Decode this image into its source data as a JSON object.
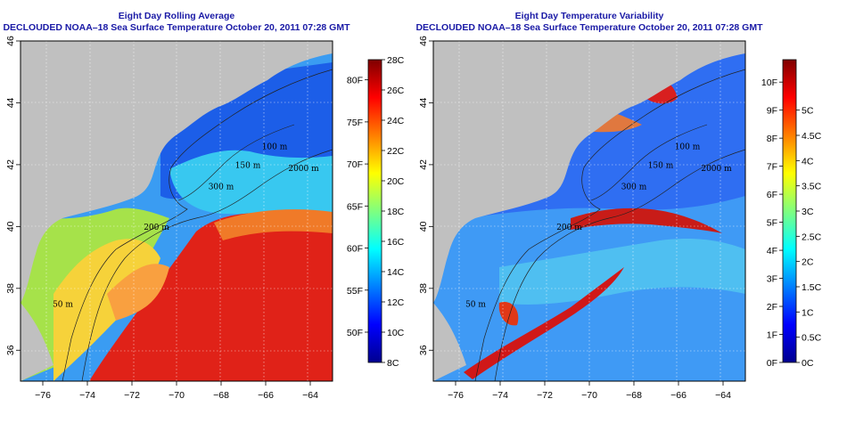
{
  "chart_data": [
    {
      "type": "heatmap",
      "title": "Eight Day Rolling Average",
      "subtitle": "DECLOUDED NOAA–18 Sea Surface Temperature October 20, 2011 07:28 GMT",
      "xlabel": "",
      "ylabel": "",
      "xlim": [
        -77,
        -63
      ],
      "ylim": [
        35,
        46
      ],
      "x_ticks": [
        -76,
        -74,
        -72,
        -70,
        -68,
        -66,
        -64
      ],
      "x_tick_labels": [
        "−76",
        "−74",
        "−72",
        "−70",
        "−68",
        "−66",
        "−64"
      ],
      "y_ticks": [
        36,
        38,
        40,
        42,
        44,
        46
      ],
      "grid": true,
      "colorbar": {
        "range_c": [
          8,
          28
        ],
        "c_ticks": [
          8,
          10,
          12,
          14,
          16,
          18,
          20,
          22,
          24,
          26,
          28
        ],
        "c_labels": [
          "8C",
          "10C",
          "12C",
          "14C",
          "16C",
          "18C",
          "20C",
          "22C",
          "24C",
          "26C",
          "28C"
        ],
        "f_ticks": [
          50,
          55,
          60,
          65,
          70,
          75,
          80
        ],
        "f_labels": [
          "50F",
          "55F",
          "60F",
          "65F",
          "70F",
          "75F",
          "80F"
        ],
        "colors": [
          "#00008f",
          "#0000ff",
          "#007fff",
          "#00ffff",
          "#7fff7f",
          "#ffff00",
          "#ff7f00",
          "#ff0000",
          "#7f0000"
        ]
      },
      "contour_labels": [
        {
          "text": "100 m",
          "lon": -65.6,
          "lat": 42.5
        },
        {
          "text": "2000 m",
          "lon": -64.3,
          "lat": 41.8
        },
        {
          "text": "150 m",
          "lon": -66.8,
          "lat": 41.9
        },
        {
          "text": "300 m",
          "lon": -68.0,
          "lat": 41.2
        },
        {
          "text": "200 m",
          "lon": -70.9,
          "lat": 39.9
        },
        {
          "text": "50 m",
          "lon": -75.1,
          "lat": 37.4
        }
      ]
    },
    {
      "type": "heatmap",
      "title": "Eight Day Temperature Variability",
      "subtitle": "DECLOUDED NOAA–18 Sea Surface Temperature October 20, 2011 07:28 GMT",
      "xlabel": "",
      "ylabel": "",
      "xlim": [
        -77,
        -63
      ],
      "ylim": [
        35,
        46
      ],
      "x_ticks": [
        -76,
        -74,
        -72,
        -70,
        -68,
        -66,
        -64
      ],
      "x_tick_labels": [
        "−76",
        "−74",
        "−72",
        "−70",
        "−68",
        "−66",
        "−64"
      ],
      "y_ticks": [
        36,
        38,
        40,
        42,
        44,
        46
      ],
      "grid": true,
      "colorbar": {
        "range_c": [
          0,
          6
        ],
        "c_ticks": [
          0,
          0.5,
          1,
          1.5,
          2,
          2.5,
          3,
          3.5,
          4,
          4.5,
          5
        ],
        "c_labels": [
          "0C",
          "0.5C",
          "1C",
          "1.5C",
          "2C",
          "2.5C",
          "3C",
          "3.5C",
          "4C",
          "4.5C",
          "5C"
        ],
        "f_ticks": [
          0,
          1,
          2,
          3,
          4,
          5,
          6,
          7,
          8,
          9,
          10
        ],
        "f_labels": [
          "0F",
          "1F",
          "2F",
          "3F",
          "4F",
          "5F",
          "6F",
          "7F",
          "8F",
          "9F",
          "10F"
        ],
        "colors": [
          "#00008f",
          "#0000ff",
          "#007fff",
          "#00ffff",
          "#7fff7f",
          "#ffff00",
          "#ff7f00",
          "#ff0000",
          "#7f0000"
        ]
      },
      "contour_labels": [
        {
          "text": "100 m",
          "lon": -65.6,
          "lat": 42.5
        },
        {
          "text": "2000 m",
          "lon": -64.3,
          "lat": 41.8
        },
        {
          "text": "150 m",
          "lon": -66.8,
          "lat": 41.9
        },
        {
          "text": "300 m",
          "lon": -68.0,
          "lat": 41.2
        },
        {
          "text": "200 m",
          "lon": -70.9,
          "lat": 39.9
        },
        {
          "text": "50 m",
          "lon": -75.1,
          "lat": 37.4
        }
      ]
    }
  ],
  "colors": {
    "land": "#c0c0c0",
    "title": "#1a1aa6",
    "grid": "#ffffff"
  }
}
